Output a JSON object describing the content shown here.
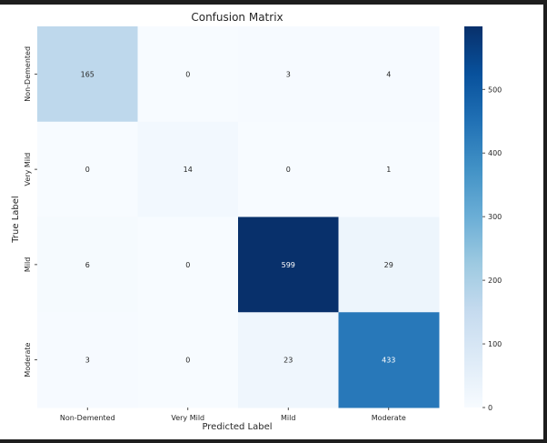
{
  "chart_data": {
    "type": "heatmap",
    "title": "Confusion Matrix",
    "xlabel": "Predicted Label",
    "ylabel": "True Label",
    "x_categories": [
      "Non-Demented",
      "Very Mild",
      "Mild",
      "Moderate"
    ],
    "y_categories": [
      "Non-Demented",
      "Very Mild",
      "Mild",
      "Moderate"
    ],
    "matrix": [
      [
        165,
        0,
        3,
        4
      ],
      [
        0,
        14,
        0,
        1
      ],
      [
        6,
        0,
        599,
        29
      ],
      [
        3,
        0,
        23,
        433
      ]
    ],
    "colormap": "Blues",
    "color_range": [
      0,
      599
    ],
    "colorbar_ticks": [
      0,
      100,
      200,
      300,
      400,
      500
    ],
    "colors": {
      "low": "#f7fbff",
      "high": "#08306b",
      "text_dark": "#262626",
      "text_light": "#ffffff"
    }
  }
}
